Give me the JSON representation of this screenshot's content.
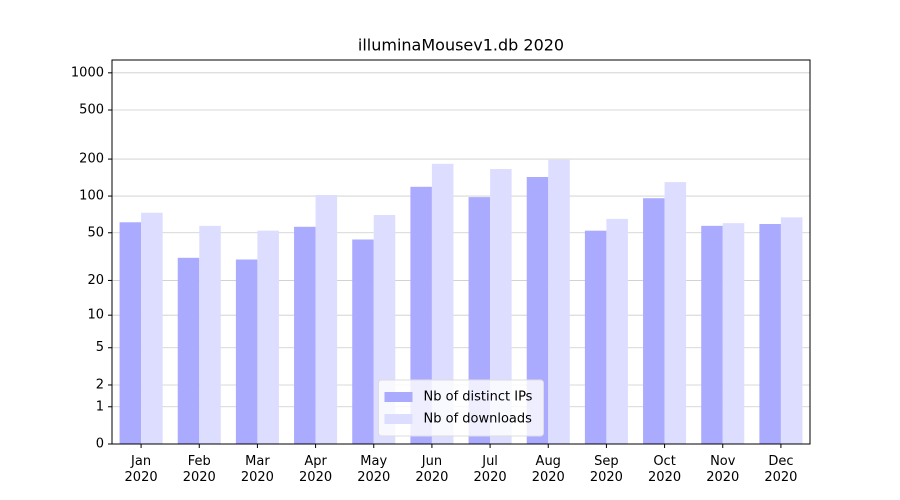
{
  "chart_data": {
    "type": "bar",
    "title": "illuminaMousev1.db 2020",
    "categories": [
      [
        "Jan",
        "2020"
      ],
      [
        "Feb",
        "2020"
      ],
      [
        "Mar",
        "2020"
      ],
      [
        "Apr",
        "2020"
      ],
      [
        "May",
        "2020"
      ],
      [
        "Jun",
        "2020"
      ],
      [
        "Jul",
        "2020"
      ],
      [
        "Aug",
        "2020"
      ],
      [
        "Sep",
        "2020"
      ],
      [
        "Oct",
        "2020"
      ],
      [
        "Nov",
        "2020"
      ],
      [
        "Dec",
        "2020"
      ]
    ],
    "series": [
      {
        "name": "Nb of distinct IPs",
        "color": "#aaaaff",
        "values": [
          61,
          31,
          30,
          56,
          44,
          119,
          98,
          143,
          52,
          96,
          57,
          59
        ]
      },
      {
        "name": "Nb of downloads",
        "color": "#ddddff",
        "values": [
          73,
          57,
          52,
          102,
          70,
          183,
          166,
          197,
          65,
          130,
          60,
          67
        ]
      }
    ],
    "yscale": "log1p",
    "ylim": [
      0,
      1270
    ],
    "yticks": [
      0,
      1,
      2,
      5,
      10,
      20,
      50,
      100,
      200,
      500,
      1000
    ],
    "grid": true,
    "legend": "lower center"
  }
}
